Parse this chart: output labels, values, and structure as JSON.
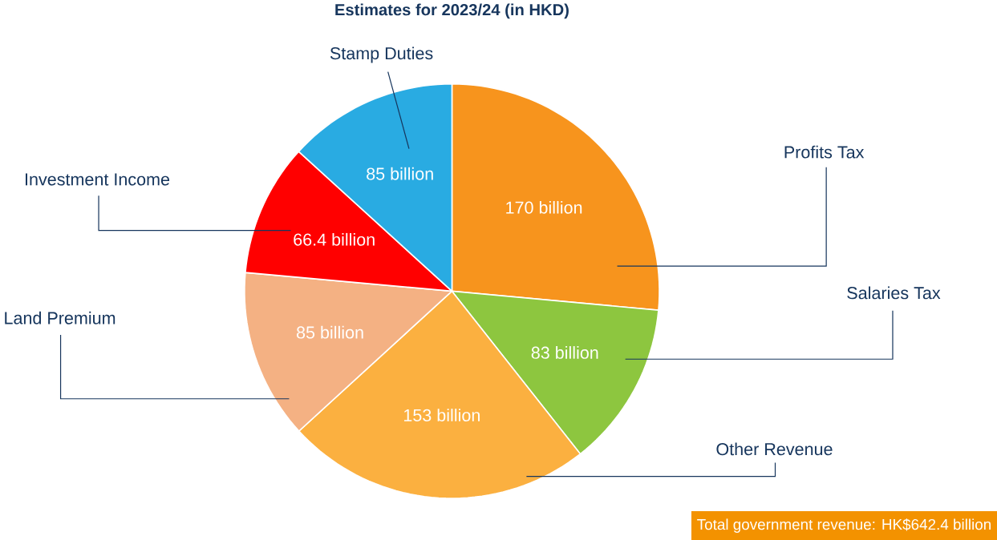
{
  "chart_data": {
    "type": "pie",
    "title": "Estimates for 2023/24 (in HKD)",
    "categories": [
      "Profits Tax",
      "Salaries Tax",
      "Other Revenue",
      "Land Premium",
      "Investment Income",
      "Stamp Duties"
    ],
    "values": [
      170,
      83,
      153,
      85,
      66.4,
      85
    ],
    "colors": [
      "#f7941d",
      "#8dc63f",
      "#fbb040",
      "#f4b183",
      "#ff0000",
      "#29abe2"
    ],
    "value_labels": [
      "170 billion",
      "83 billion",
      "153 billion",
      "85 billion",
      "66.4 billion",
      "85 billion"
    ],
    "annotations": [
      "Total government revenue: HK$642.4 billion"
    ]
  }
}
